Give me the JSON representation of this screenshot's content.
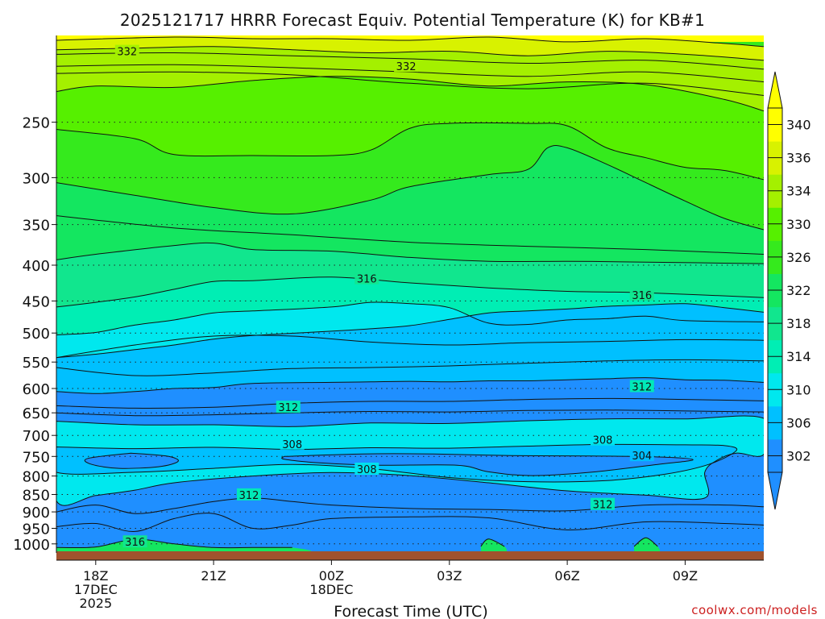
{
  "chart_data": {
    "type": "heatmap",
    "title": "2025121717 HRRR Forecast Equiv. Potential Temperature (K) for KB#1",
    "xlabel": "Forecast Time (UTC)",
    "ylabel": "",
    "credit": "coolwx.com/models",
    "y_scale": "log",
    "y_axis_inverted": true,
    "y_ticks": [
      250,
      300,
      350,
      400,
      450,
      500,
      550,
      600,
      650,
      700,
      750,
      800,
      850,
      900,
      950,
      1000
    ],
    "x_ticks": [
      {
        "hour": 18,
        "label": "18Z",
        "sublabels": [
          "17DEC",
          "2025"
        ]
      },
      {
        "hour": 21,
        "label": "21Z",
        "sublabels": []
      },
      {
        "hour": 24,
        "label": "00Z",
        "sublabels": [
          "18DEC"
        ]
      },
      {
        "hour": 27,
        "label": "03Z",
        "sublabels": []
      },
      {
        "hour": 30,
        "label": "06Z",
        "sublabels": []
      },
      {
        "hour": 33,
        "label": "09Z",
        "sublabels": []
      }
    ],
    "x_range_hours": [
      17,
      35
    ],
    "y_range_hpa": [
      188,
      1030
    ],
    "grid": "dotted horizontal lines at pressure ticks",
    "colorbar": {
      "labels": [
        340,
        336,
        334,
        330,
        326,
        322,
        318,
        314,
        310,
        306,
        302
      ],
      "levels": [
        302,
        306,
        310,
        314,
        318,
        322,
        326,
        330,
        334,
        336,
        340
      ],
      "colors": [
        "#1f8fff",
        "#00c0ff",
        "#00e8ee",
        "#00eeb4",
        "#11e68e",
        "#14e660",
        "#35ea1d",
        "#56f000",
        "#a4f000",
        "#d8f200",
        "#ffff00"
      ],
      "below_color": "#1f8fff",
      "above_color": "#ffff00"
    },
    "surface_color": "#a0522d",
    "contour_labels": [
      {
        "value": "332",
        "hour": 18.8,
        "p": 198
      },
      {
        "value": "332",
        "hour": 25.9,
        "p": 208
      },
      {
        "value": "316",
        "hour": 24.9,
        "p": 418
      },
      {
        "value": "316",
        "hour": 31.9,
        "p": 441
      },
      {
        "value": "312",
        "hour": 22.9,
        "p": 638
      },
      {
        "value": "312",
        "hour": 31.9,
        "p": 596
      },
      {
        "value": "308",
        "hour": 23.0,
        "p": 720
      },
      {
        "value": "308",
        "hour": 30.9,
        "p": 710
      },
      {
        "value": "308",
        "hour": 24.9,
        "p": 782
      },
      {
        "value": "304",
        "hour": 31.9,
        "p": 748
      },
      {
        "value": "312",
        "hour": 21.9,
        "p": 851
      },
      {
        "value": "312",
        "hour": 30.9,
        "p": 878
      },
      {
        "value": "316",
        "hour": 19.0,
        "p": 993
      }
    ],
    "boundaries": [
      {
        "value": 336,
        "points": [
          [
            17,
            191
          ],
          [
            20,
            189
          ],
          [
            22,
            190
          ],
          [
            24,
            190
          ],
          [
            26,
            191
          ],
          [
            28,
            189
          ],
          [
            30,
            192
          ],
          [
            32,
            190
          ],
          [
            34,
            193
          ],
          [
            35,
            195
          ]
        ]
      },
      {
        "value": 334,
        "points": [
          [
            17,
            197
          ],
          [
            19,
            196
          ],
          [
            21,
            195
          ],
          [
            23,
            197
          ],
          [
            25,
            199
          ],
          [
            27,
            198
          ],
          [
            29,
            201
          ],
          [
            31,
            198
          ],
          [
            33,
            200
          ],
          [
            35,
            204
          ]
        ]
      },
      {
        "value": 330,
        "points": [
          [
            17,
            226
          ],
          [
            18,
            222
          ],
          [
            20,
            223
          ],
          [
            22,
            218
          ],
          [
            24,
            215
          ],
          [
            26,
            217
          ],
          [
            28,
            222
          ],
          [
            30,
            219
          ],
          [
            32,
            221
          ],
          [
            34,
            232
          ],
          [
            35,
            241
          ]
        ]
      },
      {
        "value": 326,
        "points": [
          [
            17,
            256
          ],
          [
            19,
            264
          ],
          [
            20,
            278
          ],
          [
            22,
            279
          ],
          [
            24,
            279
          ],
          [
            25,
            274
          ],
          [
            26,
            255
          ],
          [
            27,
            251
          ],
          [
            29,
            251
          ],
          [
            30,
            253
          ],
          [
            31,
            272
          ],
          [
            32,
            281
          ],
          [
            33,
            290
          ],
          [
            34,
            293
          ],
          [
            35,
            302
          ]
        ]
      },
      {
        "value": 322,
        "points": [
          [
            17,
            305
          ],
          [
            19,
            318
          ],
          [
            21,
            331
          ],
          [
            23,
            338
          ],
          [
            25,
            323
          ],
          [
            26,
            309
          ],
          [
            28,
            297
          ],
          [
            29,
            292
          ],
          [
            29.5,
            272
          ],
          [
            30,
            272
          ],
          [
            31,
            287
          ],
          [
            32,
            305
          ],
          [
            33,
            324
          ],
          [
            34,
            343
          ],
          [
            35,
            356
          ]
        ]
      },
      {
        "value": 318,
        "points": [
          [
            17,
            393
          ],
          [
            18,
            386
          ],
          [
            20,
            375
          ],
          [
            21,
            372
          ],
          [
            22,
            380
          ],
          [
            24,
            382
          ],
          [
            26,
            390
          ],
          [
            28,
            395
          ],
          [
            30,
            395
          ],
          [
            32,
            396
          ],
          [
            35,
            398
          ]
        ]
      },
      {
        "value": 314,
        "points": [
          [
            17,
            459
          ],
          [
            18,
            452
          ],
          [
            19,
            444
          ],
          [
            20,
            433
          ],
          [
            21,
            422
          ],
          [
            22,
            421
          ],
          [
            24,
            416
          ],
          [
            26,
            424
          ],
          [
            28,
            431
          ],
          [
            30,
            436
          ],
          [
            32,
            438
          ],
          [
            35,
            445
          ]
        ]
      },
      {
        "value": 310,
        "points": [
          [
            17,
            503
          ],
          [
            18,
            499
          ],
          [
            19,
            487
          ],
          [
            20,
            479
          ],
          [
            21,
            468
          ],
          [
            22,
            465
          ],
          [
            24,
            459
          ],
          [
            25,
            452
          ],
          [
            26,
            454
          ],
          [
            27,
            460
          ],
          [
            28,
            484
          ],
          [
            29,
            486
          ],
          [
            30,
            479
          ],
          [
            31,
            477
          ],
          [
            32,
            473
          ],
          [
            33,
            480
          ],
          [
            35,
            482
          ]
        ]
      },
      {
        "value": 306,
        "points": [
          [
            17,
            542
          ],
          [
            18,
            536
          ],
          [
            19,
            528
          ],
          [
            20,
            520
          ],
          [
            21,
            510
          ],
          [
            22,
            504
          ],
          [
            24,
            497
          ],
          [
            25,
            493
          ],
          [
            26,
            488
          ],
          [
            27,
            478
          ],
          [
            28,
            468
          ],
          [
            29,
            465
          ],
          [
            30,
            462
          ],
          [
            31,
            458
          ],
          [
            32,
            456
          ],
          [
            33,
            454
          ],
          [
            34,
            460
          ],
          [
            35,
            467
          ]
        ]
      },
      {
        "value": 302,
        "points": [
          [
            17,
            606
          ],
          [
            18,
            610
          ],
          [
            19,
            606
          ],
          [
            20,
            600
          ],
          [
            21,
            598
          ],
          [
            22,
            590
          ],
          [
            24,
            588
          ],
          [
            25,
            587
          ],
          [
            26,
            586
          ],
          [
            27,
            587
          ],
          [
            28,
            585
          ],
          [
            29,
            585
          ],
          [
            30,
            583
          ],
          [
            31,
            581
          ],
          [
            32,
            579
          ],
          [
            33,
            583
          ],
          [
            34,
            584
          ],
          [
            35,
            588
          ]
        ]
      }
    ],
    "low_level_regions": [
      {
        "name": "cold-layer-310",
        "value": 310,
        "points": [
          [
            17,
            668
          ],
          [
            19,
            676
          ],
          [
            21,
            676
          ],
          [
            23,
            680
          ],
          [
            25,
            672
          ],
          [
            27,
            673
          ],
          [
            29,
            667
          ],
          [
            31,
            663
          ],
          [
            33,
            663
          ],
          [
            35,
            662
          ],
          [
            35,
            745
          ],
          [
            34.3,
            742
          ],
          [
            33.8,
            760
          ],
          [
            33.5,
            790
          ],
          [
            33.5,
            860
          ],
          [
            32,
            852
          ],
          [
            30,
            840
          ],
          [
            28,
            818
          ],
          [
            26,
            799
          ],
          [
            24,
            791
          ],
          [
            22,
            800
          ],
          [
            20,
            818
          ],
          [
            19,
            838
          ],
          [
            18,
            853
          ],
          [
            17,
            868
          ]
        ]
      },
      {
        "name": "cold-layer-306",
        "value": 306,
        "points": [
          [
            17,
            727
          ],
          [
            19,
            731
          ],
          [
            21,
            728
          ],
          [
            23,
            733
          ],
          [
            25,
            729
          ],
          [
            27,
            730
          ],
          [
            29,
            725
          ],
          [
            31,
            721
          ],
          [
            33,
            722
          ],
          [
            34,
            724
          ],
          [
            34.3,
            736
          ],
          [
            33.6,
            770
          ],
          [
            32.5,
            795
          ],
          [
            31,
            812
          ],
          [
            29,
            815
          ],
          [
            27,
            804
          ],
          [
            25,
            781
          ],
          [
            23,
            770
          ],
          [
            21,
            780
          ],
          [
            19,
            790
          ],
          [
            17,
            790
          ]
        ]
      },
      {
        "name": "cold-core-302-a",
        "value": 302,
        "points": [
          [
            18.9,
            742
          ],
          [
            19.8,
            749
          ],
          [
            20.1,
            762
          ],
          [
            19.6,
            776
          ],
          [
            18.6,
            780
          ],
          [
            17.9,
            770
          ],
          [
            17.8,
            755
          ]
        ]
      },
      {
        "name": "cold-core-302-b",
        "value": 302,
        "points": [
          [
            22.8,
            750
          ],
          [
            24.8,
            744
          ],
          [
            26.6,
            744
          ],
          [
            28.6,
            748
          ],
          [
            30.6,
            749
          ],
          [
            32.2,
            751
          ],
          [
            33.2,
            758
          ],
          [
            32.3,
            770
          ],
          [
            30.6,
            790
          ],
          [
            29.1,
            799
          ],
          [
            28.0,
            789
          ],
          [
            27.2,
            772
          ],
          [
            25.2,
            772
          ],
          [
            23.7,
            766
          ],
          [
            22.8,
            757
          ]
        ]
      }
    ],
    "warm_surface_regions": [
      {
        "name": "warm-1000-a",
        "points": [
          [
            17,
            1012
          ],
          [
            18,
            1010
          ],
          [
            19,
            985
          ],
          [
            20,
            1000
          ],
          [
            21,
            1012
          ],
          [
            22,
            1012
          ],
          [
            23,
            1012
          ],
          [
            23,
            1030
          ],
          [
            17,
            1030
          ]
        ]
      },
      {
        "name": "warm-1000-b",
        "points": [
          [
            27.8,
            1008
          ],
          [
            28.0,
            984
          ],
          [
            28.4,
            1008
          ],
          [
            28.4,
            1030
          ],
          [
            27.8,
            1030
          ]
        ]
      },
      {
        "name": "warm-1000-c",
        "points": [
          [
            31.7,
            1008
          ],
          [
            32.0,
            980
          ],
          [
            32.3,
            1008
          ],
          [
            32.3,
            1030
          ],
          [
            31.7,
            1030
          ]
        ]
      }
    ]
  }
}
